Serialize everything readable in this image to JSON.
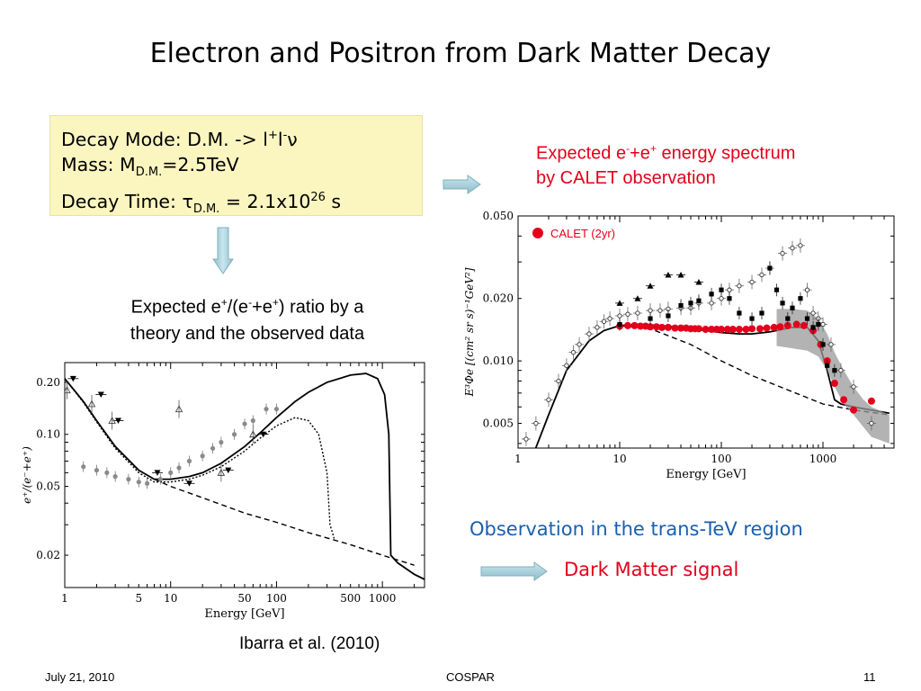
{
  "slide": {
    "title": "Electron and Positron  from Dark Matter Decay",
    "decay_box": {
      "line1_prefix": "Decay Mode: D.M. -> l",
      "line1_sup1": "+",
      "line1_mid": "l",
      "line1_sup2": "-",
      "line1_suffix": "ν",
      "line2_prefix": "Mass: M",
      "line2_sub": "D.M.",
      "line2_suffix": "=2.5TeV",
      "line3_prefix": "Decay Time: τ",
      "line3_sub": "D.M.",
      "line3_mid": " = 2.1x10",
      "line3_sup": "26",
      "line3_suffix": " s"
    },
    "spectrum_caption": {
      "line1_a": "Expected  e",
      "line1_sup1": "-",
      "line1_b": "+e",
      "line1_sup2": "+",
      "line1_c": "  energy spectrum",
      "line2": "by CALET observation"
    },
    "ratio_caption": {
      "a": "Expected e",
      "sup1": "+",
      "b": "/(e",
      "sup2": "-",
      "c": "+e",
      "sup3": "+",
      "d": ") ratio by a",
      "line2": "theory and the observed data"
    },
    "observation_text": "Observation in the trans-TeV region",
    "dark_matter_signal": "Dark Matter signal",
    "citation": "Ibarra et al. (2010)",
    "footer": {
      "date": "July  21, 2010",
      "event": "COSPAR",
      "page": "11"
    },
    "colors": {
      "red": "#e3001b",
      "blue": "#1a5fae",
      "box_bg": "#fbf6c0",
      "arrow": "#a9d2dc",
      "band_gray": "#9a9a9a"
    }
  },
  "chart_data": [
    {
      "type": "scatter",
      "xscale": "log",
      "yscale": "log",
      "xlabel": "Energy [GeV]",
      "ylabel": "e⁺/(e⁻+e⁺)",
      "xlim": [
        1,
        2500
      ],
      "ylim": [
        0.013,
        0.26
      ],
      "x_ticks": [
        {
          "v": 1,
          "label": "1"
        },
        {
          "v": 5,
          "label": "5"
        },
        {
          "v": 10,
          "label": "10"
        },
        {
          "v": 50,
          "label": "50"
        },
        {
          "v": 100,
          "label": "100"
        },
        {
          "v": 500,
          "label": "500"
        },
        {
          "v": 1000,
          "label": "1000"
        }
      ],
      "y_ticks": [
        {
          "v": 0.02,
          "label": "0.02"
        },
        {
          "v": 0.05,
          "label": "0.05"
        },
        {
          "v": 0.1,
          "label": "0.10"
        },
        {
          "v": 0.2,
          "label": "0.20"
        }
      ],
      "series": [
        {
          "style": "solid",
          "x": [
            1,
            1.5,
            2,
            3,
            5,
            7,
            10,
            15,
            20,
            30,
            50,
            70,
            100,
            150,
            200,
            300,
            500,
            700,
            900,
            1050,
            1150,
            1200,
            1400,
            2000,
            2500
          ],
          "y": [
            0.21,
            0.155,
            0.12,
            0.085,
            0.062,
            0.055,
            0.055,
            0.057,
            0.06,
            0.068,
            0.085,
            0.102,
            0.125,
            0.155,
            0.175,
            0.2,
            0.22,
            0.225,
            0.21,
            0.17,
            0.1,
            0.02,
            0.018,
            0.0155,
            0.0145
          ]
        },
        {
          "style": "dotted",
          "x": [
            1,
            1.5,
            2,
            3,
            5,
            7,
            10,
            15,
            20,
            30,
            50,
            70,
            100,
            150,
            200,
            250,
            300,
            320,
            350
          ],
          "y": [
            0.21,
            0.153,
            0.118,
            0.083,
            0.06,
            0.053,
            0.053,
            0.055,
            0.058,
            0.065,
            0.08,
            0.095,
            0.112,
            0.125,
            0.12,
            0.1,
            0.06,
            0.03,
            0.025
          ]
        },
        {
          "style": "dashed",
          "x": [
            7,
            10,
            20,
            50,
            100,
            200,
            500,
            1000,
            2000
          ],
          "y": [
            0.055,
            0.05,
            0.043,
            0.035,
            0.031,
            0.027,
            0.023,
            0.02,
            0.0175
          ]
        },
        {
          "style": "markers-circle",
          "x": [
            1.5,
            2,
            2.5,
            3,
            4,
            5,
            6,
            8,
            10,
            12,
            15,
            20,
            25,
            30,
            40,
            50,
            60,
            80,
            100
          ],
          "y": [
            0.065,
            0.062,
            0.06,
            0.057,
            0.055,
            0.053,
            0.052,
            0.055,
            0.06,
            0.064,
            0.07,
            0.075,
            0.083,
            0.09,
            0.1,
            0.115,
            0.12,
            0.14,
            0.14
          ]
        },
        {
          "style": "markers-triangle-down",
          "x": [
            1.2,
            2.2,
            3.2,
            7.5,
            15,
            35,
            75
          ],
          "y": [
            0.21,
            0.17,
            0.12,
            0.06,
            0.052,
            0.062,
            0.1
          ]
        },
        {
          "style": "markers-triangle-up",
          "x": [
            1.05,
            1.8,
            2.8,
            12,
            30,
            60
          ],
          "y": [
            0.18,
            0.15,
            0.12,
            0.14,
            0.06,
            0.1
          ]
        }
      ]
    },
    {
      "type": "scatter",
      "xscale": "log",
      "yscale": "log",
      "xlabel": "Energy [GeV]",
      "ylabel": "E³Φe [(cm² sr s)⁻¹GeV²]",
      "xlim": [
        1,
        5000
      ],
      "ylim": [
        0.0038,
        0.05
      ],
      "x_ticks": [
        {
          "v": 1,
          "label": "1"
        },
        {
          "v": 10,
          "label": "10"
        },
        {
          "v": 100,
          "label": "100"
        },
        {
          "v": 1000,
          "label": "1000"
        }
      ],
      "y_ticks": [
        {
          "v": 0.005,
          "label": "0.005"
        },
        {
          "v": 0.01,
          "label": "0.010"
        },
        {
          "v": 0.02,
          "label": "0.020"
        },
        {
          "v": 0.05,
          "label": "0.050"
        }
      ],
      "legend": {
        "label": "CALET (2yr)",
        "position": "top-left"
      },
      "series": [
        {
          "style": "solid",
          "x": [
            1.4,
            2,
            3,
            5,
            7,
            10,
            15,
            20,
            30,
            50,
            70,
            100,
            150,
            200,
            300,
            500,
            700,
            900,
            1100,
            1300,
            1500,
            2000,
            3000,
            4500
          ],
          "y": [
            0.0035,
            0.0055,
            0.009,
            0.0125,
            0.014,
            0.0148,
            0.015,
            0.0149,
            0.0147,
            0.0143,
            0.014,
            0.0137,
            0.0135,
            0.0135,
            0.0138,
            0.0145,
            0.0145,
            0.0125,
            0.009,
            0.0065,
            0.0062,
            0.006,
            0.0058,
            0.0056
          ]
        },
        {
          "style": "dashed",
          "x": [
            10,
            20,
            50,
            100,
            200,
            500,
            1000,
            2000,
            4500
          ],
          "y": [
            0.0148,
            0.0143,
            0.012,
            0.01,
            0.0085,
            0.0071,
            0.0062,
            0.0058,
            0.0055
          ]
        },
        {
          "style": "band",
          "x": [
            350,
            500,
            700,
            900,
            1100,
            1300,
            1600,
            2000,
            2500,
            3000,
            4500
          ],
          "y_low": [
            0.0118,
            0.0115,
            0.0112,
            0.0105,
            0.009,
            0.0075,
            0.0062,
            0.0055,
            0.0048,
            0.0043,
            0.004
          ],
          "y_high": [
            0.0178,
            0.0178,
            0.0175,
            0.016,
            0.0135,
            0.011,
            0.009,
            0.0075,
            0.0065,
            0.006,
            0.0055
          ]
        },
        {
          "name": "CALET (2yr)",
          "style": "markers-red",
          "x": [
            10,
            12,
            14,
            16,
            18,
            20,
            23,
            26,
            30,
            35,
            40,
            45,
            50,
            55,
            60,
            70,
            80,
            90,
            100,
            115,
            130,
            150,
            175,
            200,
            240,
            280,
            330,
            380,
            450,
            550,
            650,
            800,
            950,
            1100,
            1300,
            1600,
            2000,
            3000
          ],
          "y": [
            0.0147,
            0.0148,
            0.0148,
            0.0147,
            0.0147,
            0.0146,
            0.0146,
            0.0145,
            0.0145,
            0.0144,
            0.0144,
            0.0144,
            0.0143,
            0.0143,
            0.0143,
            0.0142,
            0.0142,
            0.0142,
            0.0142,
            0.0142,
            0.0142,
            0.0142,
            0.0142,
            0.0143,
            0.0143,
            0.0144,
            0.0145,
            0.0146,
            0.0148,
            0.015,
            0.0148,
            0.014,
            0.012,
            0.01,
            0.0078,
            0.0065,
            0.0058,
            0.0064
          ]
        },
        {
          "style": "markers-open",
          "x": [
            1.2,
            1.5,
            2,
            2.5,
            3,
            3.5,
            4,
            5,
            6,
            7,
            8,
            10,
            12,
            15,
            20,
            25,
            30,
            40,
            50,
            60,
            80,
            100,
            120,
            150,
            200,
            250,
            300,
            400,
            500,
            600,
            700,
            800,
            900,
            1000,
            1200,
            1500,
            2000,
            3000
          ],
          "y": [
            0.0042,
            0.005,
            0.0065,
            0.008,
            0.0095,
            0.011,
            0.012,
            0.0135,
            0.0145,
            0.0155,
            0.016,
            0.0165,
            0.0168,
            0.017,
            0.0175,
            0.0175,
            0.0178,
            0.018,
            0.018,
            0.019,
            0.019,
            0.02,
            0.022,
            0.023,
            0.024,
            0.026,
            0.028,
            0.033,
            0.035,
            0.036,
            0.022,
            0.017,
            0.016,
            0.015,
            0.012,
            0.009,
            0.0075,
            0.005
          ]
        },
        {
          "style": "markers-filled-square",
          "x": [
            10,
            20,
            30,
            40,
            50,
            60,
            80,
            100,
            120,
            150,
            200,
            250,
            300,
            350,
            400,
            450,
            500,
            600,
            700,
            800,
            900,
            1000,
            1100,
            1300
          ],
          "y": [
            0.015,
            0.016,
            0.0165,
            0.0185,
            0.019,
            0.0195,
            0.021,
            0.022,
            0.02,
            0.017,
            0.016,
            0.017,
            0.028,
            0.022,
            0.019,
            0.016,
            0.018,
            0.02,
            0.016,
            0.0145,
            0.015,
            0.012,
            0.0095,
            0.009
          ]
        },
        {
          "style": "markers-filled-triangle",
          "x": [
            10,
            15,
            20,
            30,
            40,
            60
          ],
          "y": [
            0.019,
            0.02,
            0.023,
            0.026,
            0.026,
            0.024
          ]
        }
      ]
    }
  ]
}
